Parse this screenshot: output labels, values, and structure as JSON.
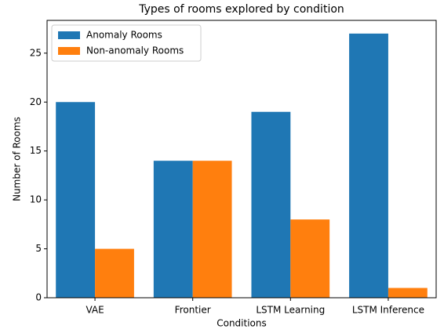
{
  "chart_data": {
    "type": "bar",
    "title": "Types of rooms explored by condition",
    "xlabel": "Conditions",
    "ylabel": "Number of Rooms",
    "categories": [
      "VAE",
      "Frontier",
      "LSTM Learning",
      "LSTM Inference"
    ],
    "series": [
      {
        "name": "Anomaly Rooms",
        "color": "#1f77b4",
        "values": [
          20,
          14,
          19,
          27
        ]
      },
      {
        "name": "Non-anomaly Rooms",
        "color": "#ff7f0e",
        "values": [
          5,
          14,
          8,
          1
        ]
      }
    ],
    "ylim": [
      0,
      28.35
    ],
    "yticks": [
      0,
      5,
      10,
      15,
      20,
      25
    ],
    "legend": "upper left",
    "grid": false
  }
}
